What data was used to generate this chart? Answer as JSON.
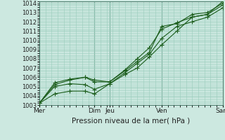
{
  "title": "",
  "xlabel": "Pression niveau de la mer( hPa )",
  "background_color": "#cce8e0",
  "grid_color": "#99ccbb",
  "line_color": "#1a5c1a",
  "marker_color": "#1a5c1a",
  "ylim": [
    1003,
    1014.2
  ],
  "yticks": [
    1003,
    1004,
    1005,
    1006,
    1007,
    1008,
    1009,
    1010,
    1011,
    1012,
    1013,
    1014
  ],
  "xtick_positions": [
    0.0,
    1.8,
    2.3,
    4.0,
    6.0
  ],
  "xtick_labels": [
    "Mer",
    "Dim",
    "Jeu",
    "Ven",
    "Sam"
  ],
  "vlines": [
    1.8,
    2.3,
    4.0
  ],
  "series": [
    {
      "x": [
        0.0,
        0.5,
        1.0,
        1.5,
        1.8,
        2.3,
        2.8,
        3.2,
        3.6,
        4.0,
        4.5,
        5.0,
        5.5,
        6.0
      ],
      "y": [
        1003.2,
        1005.4,
        1005.8,
        1006.0,
        1005.5,
        1005.5,
        1006.7,
        1007.7,
        1008.7,
        1011.5,
        1011.8,
        1012.8,
        1013.0,
        1014.0
      ]
    },
    {
      "x": [
        0.0,
        0.5,
        1.0,
        1.5,
        1.8,
        2.3,
        2.8,
        3.2,
        3.6,
        4.0,
        4.5,
        5.0,
        5.5,
        6.0
      ],
      "y": [
        1003.2,
        1005.2,
        1005.7,
        1006.0,
        1005.7,
        1005.5,
        1006.8,
        1008.0,
        1009.2,
        1011.2,
        1011.9,
        1012.5,
        1012.8,
        1013.8
      ]
    },
    {
      "x": [
        0.0,
        0.5,
        1.0,
        1.5,
        1.8,
        2.3,
        2.8,
        3.2,
        3.6,
        4.0,
        4.5,
        5.0,
        5.5,
        6.0
      ],
      "y": [
        1003.2,
        1005.0,
        1005.3,
        1005.2,
        1004.7,
        1005.3,
        1006.5,
        1007.5,
        1008.5,
        1010.2,
        1011.5,
        1012.0,
        1012.5,
        1013.5
      ]
    },
    {
      "x": [
        0.0,
        0.5,
        1.0,
        1.5,
        1.8,
        2.3,
        2.8,
        3.2,
        3.6,
        4.0,
        4.5,
        5.0,
        5.5,
        6.0
      ],
      "y": [
        1003.2,
        1004.2,
        1004.5,
        1004.5,
        1004.2,
        1005.3,
        1006.3,
        1007.0,
        1008.2,
        1009.5,
        1011.0,
        1012.5,
        1012.8,
        1014.2
      ]
    }
  ]
}
